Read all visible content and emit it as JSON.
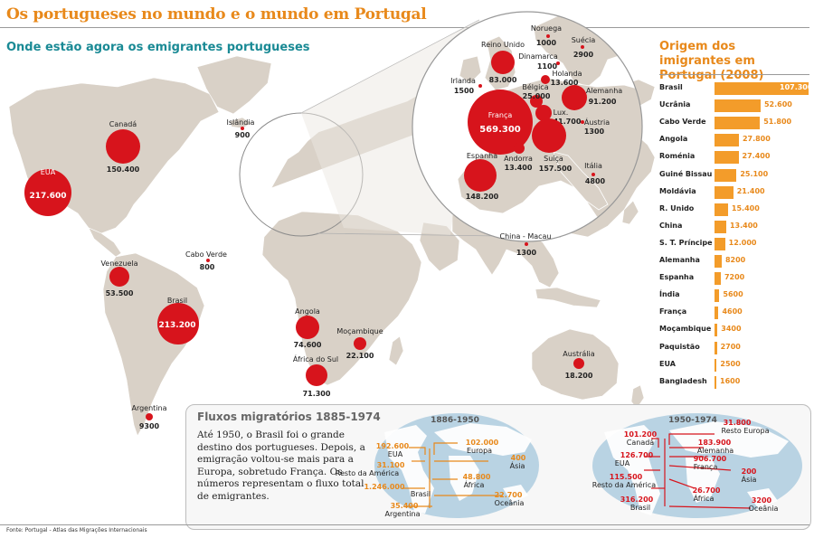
{
  "title": "Os portugueses no mundo e o mundo em Portugal",
  "subtitle": "Onde estão agora os emigrantes portugueses",
  "world_bubbles": [
    {
      "name": "EUA",
      "value": "217.600"
    },
    {
      "name": "Canadá",
      "value": "150.400"
    },
    {
      "name": "Islândia",
      "value": "900"
    },
    {
      "name": "Cabo Verde",
      "value": "800"
    },
    {
      "name": "Venezuela",
      "value": "53.500"
    },
    {
      "name": "Brasil",
      "value": "213.200"
    },
    {
      "name": "Argentina",
      "value": "9300"
    },
    {
      "name": "Angola",
      "value": "74.600"
    },
    {
      "name": "Moçambique",
      "value": "22.100"
    },
    {
      "name": "África do Sul",
      "value": "71.300"
    },
    {
      "name": "China - Macau",
      "value": "1300"
    },
    {
      "name": "Austrália",
      "value": "18.200"
    }
  ],
  "europe_bubbles": [
    {
      "name": "Noruega",
      "value": "1000"
    },
    {
      "name": "Suécia",
      "value": "2900"
    },
    {
      "name": "Reino Unido",
      "value": "83.000"
    },
    {
      "name": "Dinamarca",
      "value": "1100"
    },
    {
      "name": "Holanda",
      "value": "13.600"
    },
    {
      "name": "Irlanda",
      "value": "1500"
    },
    {
      "name": "Bélgica",
      "value": "25.000"
    },
    {
      "name": "Alemanha",
      "value": "91.200"
    },
    {
      "name": "França",
      "value": "569.300"
    },
    {
      "name": "Lux.",
      "value": "41.700"
    },
    {
      "name": "Áustria",
      "value": "1300"
    },
    {
      "name": "Andorra",
      "value": "13.400"
    },
    {
      "name": "Suíça",
      "value": "157.500"
    },
    {
      "name": "Espanha",
      "value": "148.200"
    },
    {
      "name": "Itália",
      "value": "4800"
    }
  ],
  "origin": {
    "title": "Origem dos imigrantes em Portugal (2008)",
    "rows": [
      {
        "country": "Brasil",
        "value": 107300,
        "label": "107.300"
      },
      {
        "country": "Ucrânia",
        "value": 52600,
        "label": "52.600"
      },
      {
        "country": "Cabo Verde",
        "value": 51800,
        "label": "51.800"
      },
      {
        "country": "Angola",
        "value": 27800,
        "label": "27.800"
      },
      {
        "country": "Roménia",
        "value": 27400,
        "label": "27.400"
      },
      {
        "country": "Guiné Bissau",
        "value": 25100,
        "label": "25.100"
      },
      {
        "country": "Moldávia",
        "value": 21400,
        "label": "21.400"
      },
      {
        "country": "R. Unido",
        "value": 15400,
        "label": "15.400"
      },
      {
        "country": "China",
        "value": 13400,
        "label": "13.400"
      },
      {
        "country": "S. T. Príncipe",
        "value": 12000,
        "label": "12.000"
      },
      {
        "country": "Alemanha",
        "value": 8200,
        "label": "8200"
      },
      {
        "country": "Espanha",
        "value": 7200,
        "label": "7200"
      },
      {
        "country": "Índia",
        "value": 5600,
        "label": "5600"
      },
      {
        "country": "França",
        "value": 4600,
        "label": "4600"
      },
      {
        "country": "Moçambique",
        "value": 3400,
        "label": "3400"
      },
      {
        "country": "Paquistão",
        "value": 2700,
        "label": "2700"
      },
      {
        "country": "EUA",
        "value": 2500,
        "label": "2500"
      },
      {
        "country": "Bangladesh",
        "value": 1600,
        "label": "1600"
      }
    ]
  },
  "flows": {
    "title": "Fluxos migratórios 1885-1974",
    "text": "Até 1950, o Brasil foi o grande destino dos portugueses. Depois, a emigração voltou-se mais para a Europa, sobretudo França. Os números representam o fluxo total de emigrantes.",
    "period1": {
      "label": "1886-1950",
      "items": [
        {
          "name": "EUA",
          "value": "192.600"
        },
        {
          "name": "Europa",
          "value": "102.000"
        },
        {
          "name": "Resto da América",
          "value": "31.100"
        },
        {
          "name": "Ásia",
          "value": "400"
        },
        {
          "name": "Brasil",
          "value": "1.246.000"
        },
        {
          "name": "África",
          "value": "48.800"
        },
        {
          "name": "Argentina",
          "value": "35.400"
        },
        {
          "name": "Oceânia",
          "value": "22.700"
        }
      ]
    },
    "period2": {
      "label": "1950-1974",
      "items": [
        {
          "name": "Canadá",
          "value": "101.200"
        },
        {
          "name": "Resto Europa",
          "value": "31.800"
        },
        {
          "name": "EUA",
          "value": "126.700"
        },
        {
          "name": "Alemanha",
          "value": "183.900"
        },
        {
          "name": "França",
          "value": "906.700"
        },
        {
          "name": "Resto da América",
          "value": "115.500"
        },
        {
          "name": "Ásia",
          "value": "200"
        },
        {
          "name": "Brasil",
          "value": "316.200"
        },
        {
          "name": "África",
          "value": "26.700"
        },
        {
          "name": "Oceânia",
          "value": "3200"
        }
      ]
    }
  },
  "source": "Fonte: Portugal - Atlas das Migrações Internacionais",
  "colors": {
    "accent_orange": "#e8891b",
    "bar_orange": "#f39c2a",
    "bubble_red": "#d7141c",
    "land": "#d9d1c7",
    "teal": "#1a8a95"
  }
}
